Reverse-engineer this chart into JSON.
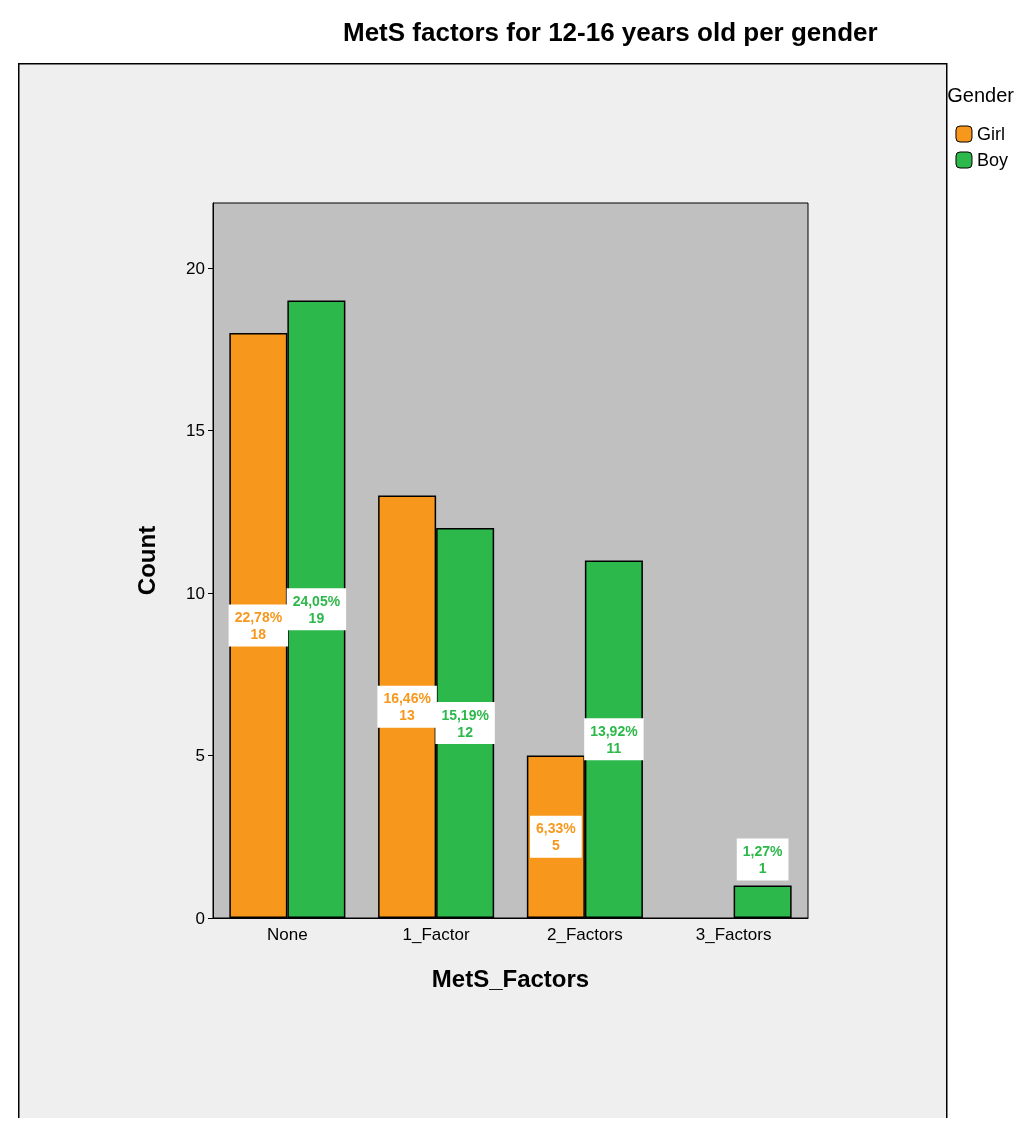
{
  "chart_data": {
    "type": "bar",
    "title": "MetS factors for 12-16 years old per gender",
    "xlabel": "MetS_Factors",
    "ylabel": "Count",
    "legend_title": "Gender",
    "categories": [
      "None",
      "1_Factor",
      "2_Factors",
      "3_Factors"
    ],
    "series": [
      {
        "name": "Girl",
        "color": "#f7981d",
        "values": [
          18,
          13,
          5,
          null
        ],
        "value_labels": [
          "22,78%\n18",
          "16,46%\n13",
          "6,33%\n5",
          null
        ]
      },
      {
        "name": "Boy",
        "color": "#2db84b",
        "values": [
          19,
          12,
          11,
          1
        ],
        "value_labels": [
          "24,05%\n19",
          "15,19%\n12",
          "13,92%\n11",
          "1,27%\n1"
        ]
      }
    ],
    "ylim": [
      0,
      22
    ],
    "yticks": [
      0,
      5,
      10,
      15,
      20
    ],
    "grid": false,
    "legend": "top right"
  }
}
